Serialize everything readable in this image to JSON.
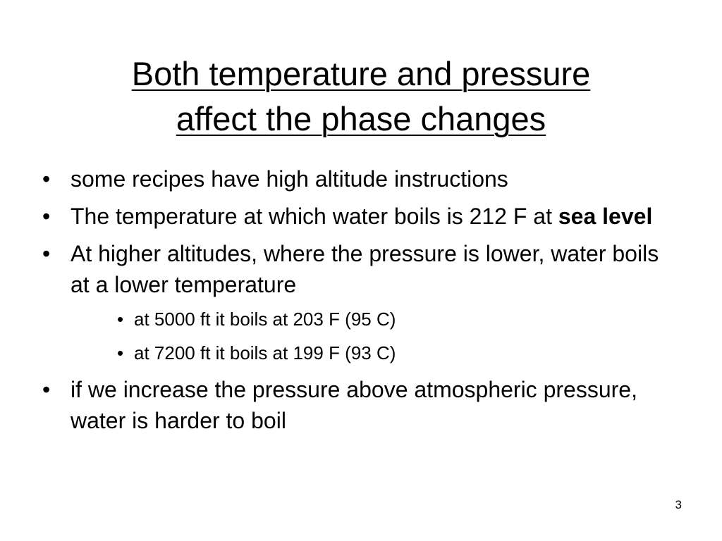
{
  "slide": {
    "title_line1": "Both temperature and pressure",
    "title_line2": "affect the phase changes",
    "bullet_char": "•",
    "bullets": [
      {
        "text": "some recipes have high altitude instructions"
      },
      {
        "text_before": "The temperature at which water boils is 212 F at ",
        "bold": "sea level"
      },
      {
        "text": "At higher altitudes, where the pressure is lower, water boils at a lower temperature"
      },
      {
        "text": "if we increase the pressure above atmospheric pressure, water is harder to boil"
      }
    ],
    "sub_bullets": [
      {
        "text": "at 5000 ft it boils at 203 F (95 C)"
      },
      {
        "text": "at 7200 ft it boils at 199 F (93 C)"
      }
    ],
    "page_number": "3"
  }
}
